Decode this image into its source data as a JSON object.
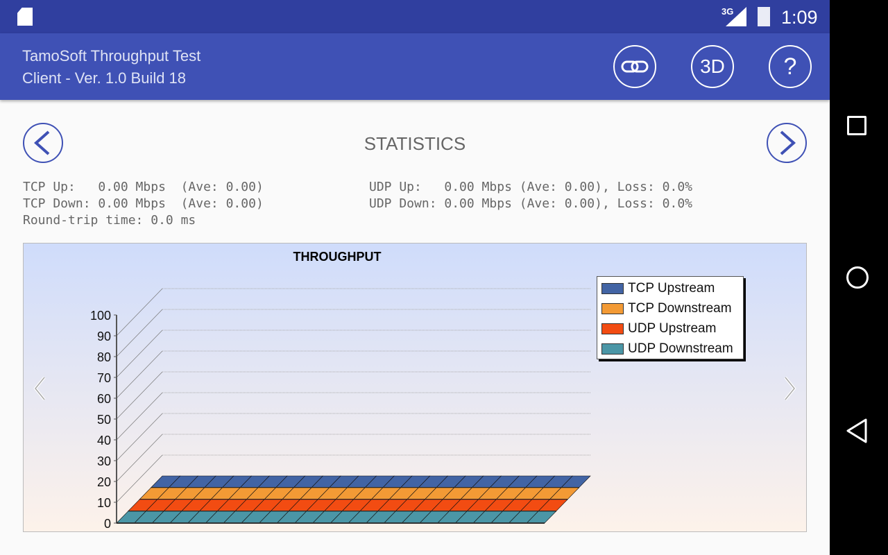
{
  "status_bar": {
    "time": "1:09",
    "network": "3G",
    "icons": [
      "sd-card-icon",
      "signal-icon",
      "battery-charging-icon"
    ]
  },
  "app_bar": {
    "title": "TamoSoft Throughput Test",
    "subtitle": "Client - Ver. 1.0 Build 18",
    "buttons": [
      {
        "icon": "link-icon",
        "label": ""
      },
      {
        "icon": "3d-icon",
        "label": "3D"
      },
      {
        "icon": "help-icon",
        "label": "?"
      }
    ]
  },
  "page": {
    "title": "STATISTICS"
  },
  "stats": {
    "tcp_up": "TCP Up:   0.00 Mbps  (Ave: 0.00)",
    "tcp_down": "TCP Down: 0.00 Mbps  (Ave: 0.00)",
    "rtt": "Round-trip time: 0.0 ms",
    "udp_up": "UDP Up:   0.00 Mbps (Ave: 0.00), Loss: 0.0%",
    "udp_down": "UDP Down: 0.00 Mbps (Ave: 0.00), Loss: 0.0%"
  },
  "chart_data": {
    "type": "bar",
    "title": "THROUGHPUT",
    "ylim": [
      0,
      100
    ],
    "yticks": [
      "0",
      "10",
      "20",
      "30",
      "40",
      "50",
      "60",
      "70",
      "80",
      "90",
      "100"
    ],
    "grid": true,
    "legend_position": "top-right",
    "3d": true,
    "series": [
      {
        "name": "TCP Upstream",
        "color": "#4264a4",
        "values": [
          0,
          0,
          0,
          0,
          0,
          0,
          0,
          0,
          0,
          0,
          0,
          0,
          0,
          0,
          0,
          0,
          0,
          0,
          0,
          0,
          0,
          0,
          0,
          0
        ]
      },
      {
        "name": "TCP Downstream",
        "color": "#f39a35",
        "values": [
          0,
          0,
          0,
          0,
          0,
          0,
          0,
          0,
          0,
          0,
          0,
          0,
          0,
          0,
          0,
          0,
          0,
          0,
          0,
          0,
          0,
          0,
          0,
          0
        ]
      },
      {
        "name": "UDP Upstream",
        "color": "#f24c12",
        "values": [
          0,
          0,
          0,
          0,
          0,
          0,
          0,
          0,
          0,
          0,
          0,
          0,
          0,
          0,
          0,
          0,
          0,
          0,
          0,
          0,
          0,
          0,
          0,
          0
        ]
      },
      {
        "name": "UDP Downstream",
        "color": "#4b96a6",
        "values": [
          0,
          0,
          0,
          0,
          0,
          0,
          0,
          0,
          0,
          0,
          0,
          0,
          0,
          0,
          0,
          0,
          0,
          0,
          0,
          0,
          0,
          0,
          0,
          0
        ]
      }
    ]
  },
  "nav": {
    "icons": [
      "recent-apps-icon",
      "home-icon",
      "back-icon"
    ]
  }
}
